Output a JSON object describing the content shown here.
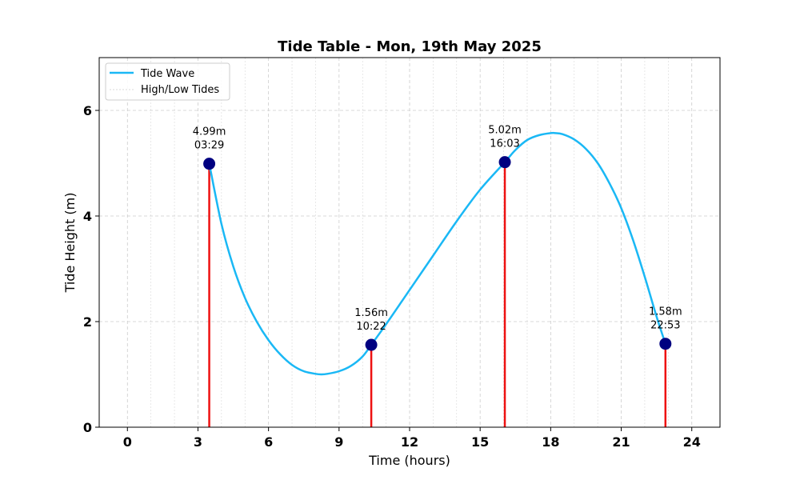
{
  "chart_data": {
    "type": "line",
    "title": "Tide Table - Mon, 19th May 2025",
    "xlabel": "Time (hours)",
    "ylabel": "Tide Height (m)",
    "xlim": [
      -1.2,
      25.2
    ],
    "ylim": [
      0,
      7
    ],
    "x_ticks": [
      0,
      3,
      6,
      9,
      12,
      15,
      18,
      21,
      24
    ],
    "x_tick_labels": [
      "0",
      "3",
      "6",
      "9",
      "12",
      "15",
      "18",
      "21",
      "24"
    ],
    "y_ticks": [
      0,
      2,
      4,
      6
    ],
    "y_tick_labels": [
      "0",
      "2",
      "4",
      "6"
    ],
    "grid": true,
    "minor_x_grid": true,
    "legend": {
      "position": "top-left",
      "entries": [
        "Tide Wave",
        "High/Low Tides"
      ]
    },
    "series": [
      {
        "name": "Tide Wave",
        "color": "#1ab8f5",
        "x": [
          3.48,
          4.0,
          4.5,
          5.0,
          5.5,
          6.0,
          6.5,
          7.0,
          7.5,
          8.0,
          8.25,
          8.5,
          9.0,
          9.5,
          10.0,
          10.37,
          11.0,
          12.0,
          13.0,
          14.0,
          15.0,
          16.05,
          16.5,
          17.0,
          17.5,
          18.0,
          18.2,
          18.5,
          19.0,
          19.5,
          20.0,
          20.5,
          21.0,
          21.5,
          22.0,
          22.5,
          22.88
        ],
        "y": [
          4.99,
          3.85,
          3.05,
          2.45,
          2.0,
          1.65,
          1.38,
          1.18,
          1.06,
          1.01,
          1.0,
          1.01,
          1.06,
          1.16,
          1.34,
          1.56,
          1.95,
          2.6,
          3.25,
          3.9,
          4.5,
          5.02,
          5.25,
          5.44,
          5.53,
          5.57,
          5.57,
          5.55,
          5.45,
          5.27,
          5.0,
          4.62,
          4.15,
          3.55,
          2.85,
          2.1,
          1.58
        ]
      },
      {
        "name": "High/Low Tides",
        "color": "#000080",
        "stem_color": "#ee1111",
        "points": [
          {
            "x": 3.48,
            "y": 4.99,
            "height_label": "4.99m",
            "time_label": "03:29"
          },
          {
            "x": 10.37,
            "y": 1.56,
            "height_label": "1.56m",
            "time_label": "10:22"
          },
          {
            "x": 16.05,
            "y": 5.02,
            "height_label": "5.02m",
            "time_label": "16:03"
          },
          {
            "x": 22.88,
            "y": 1.58,
            "height_label": "1.58m",
            "time_label": "22:53"
          }
        ]
      }
    ]
  }
}
